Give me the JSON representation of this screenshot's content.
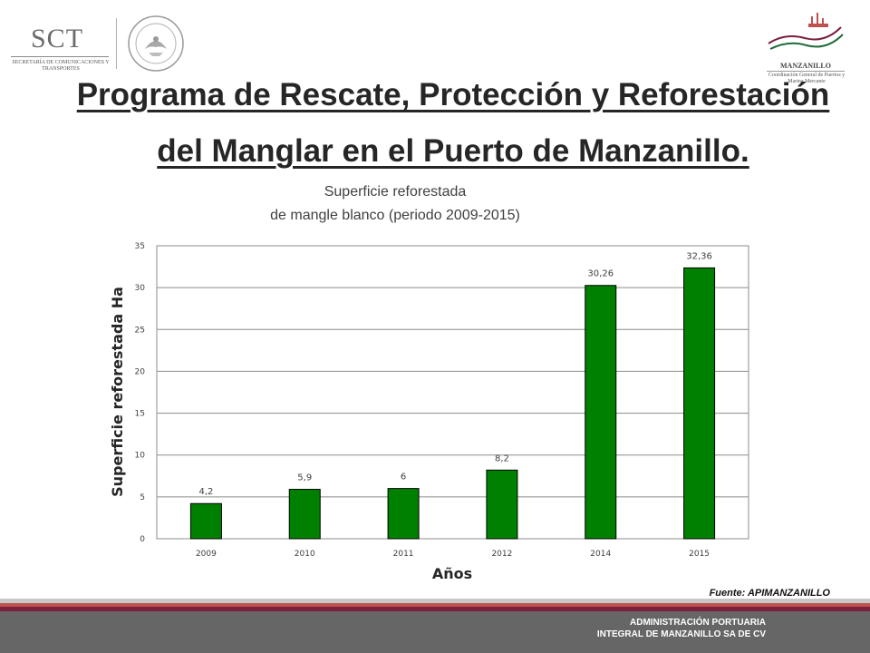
{
  "header": {
    "sct_logo": {
      "name": "SCT",
      "subtitle": "SECRETARÍA DE COMUNICACIONES Y TRANSPORTES"
    },
    "seal_logo": {
      "icon": "mexico-coat-of-arms-seal"
    },
    "port_logo": {
      "name": "MANZANILLO",
      "subtitle": "Coordinación General de Puertos y Marina Mercante"
    }
  },
  "slide_title": "Programa de Rescate, Protección y Reforestación del Manglar en el Puerto de Manzanillo.",
  "chart_data": {
    "type": "bar",
    "title_line1": "Superficie reforestada",
    "title_line2": "de mangle blanco (periodo 2009-2015)",
    "categories": [
      "2009",
      "2010",
      "2011",
      "2012",
      "2014",
      "2015"
    ],
    "values": [
      4.2,
      5.9,
      6,
      8.2,
      30.26,
      32.36
    ],
    "data_labels": [
      "4,2",
      "5,9",
      "6",
      "8,2",
      "30,26",
      "32,36"
    ],
    "xlabel": "Años",
    "ylabel": "Superficie reforestada Ha",
    "ylim": [
      0,
      35
    ],
    "yticks": [
      "0",
      "5",
      "10",
      "15",
      "20",
      "25",
      "30",
      "35"
    ],
    "grid": true,
    "legend": false,
    "bar_color": "#008000",
    "bar_edge_color": "#000000"
  },
  "source": "Fuente: APIMANZANILLO",
  "footer": {
    "line1": "ADMINISTRACIÓN PORTUARIA",
    "line2": "INTEGRAL DE MANZANILLO SA DE CV",
    "bar_color": "#666666",
    "stripe_colors": [
      "#c8c8c8",
      "#c0504d",
      "#7a1f3d"
    ]
  }
}
